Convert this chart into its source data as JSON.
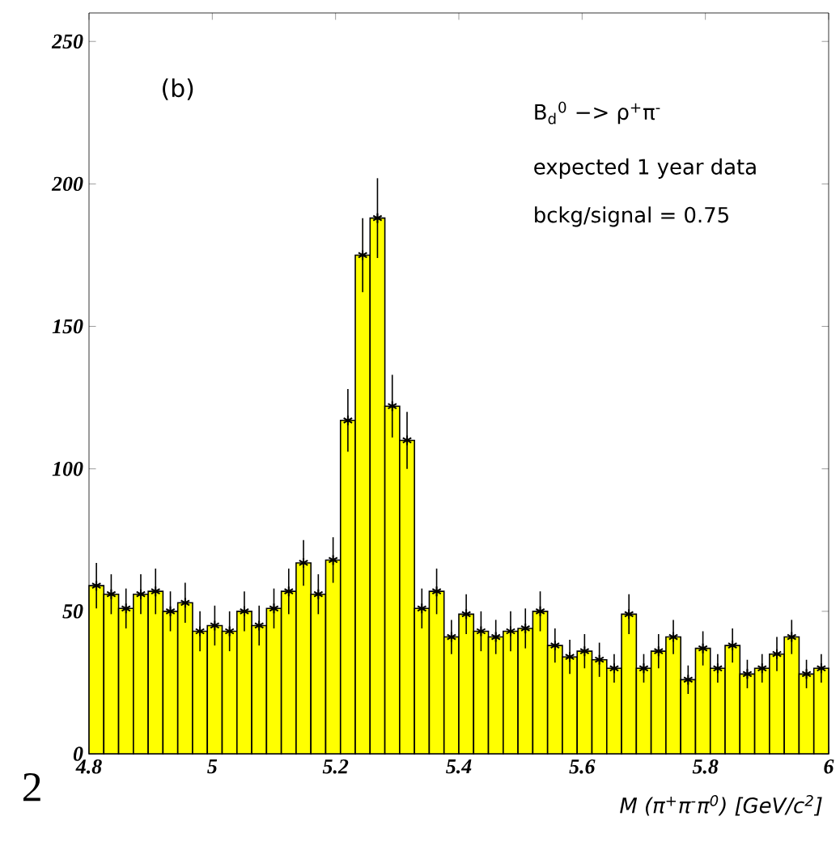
{
  "chart_data": {
    "type": "histogram",
    "xlabel": "M (π$^{+}$π$^{-}$π$^{0}$)   [GeV/c$^{2}$]",
    "annotations": [
      "(b)",
      "B$_{d}$$^{0}$ −> ρ$^{+}$π$^{-}$",
      "expected 1 year data",
      "bckg/signal = 0.75",
      "2"
    ],
    "bins": [
      4.8,
      4.824,
      4.848,
      4.872,
      4.896,
      4.92,
      4.944,
      4.968,
      4.992,
      5.016,
      5.04,
      5.064,
      5.088,
      5.112,
      5.136,
      5.16,
      5.184,
      5.208,
      5.232,
      5.256,
      5.28,
      5.304,
      5.328,
      5.352,
      5.376,
      5.4,
      5.424,
      5.448,
      5.472,
      5.496,
      5.52,
      5.544,
      5.568,
      5.592,
      5.616,
      5.64,
      5.664,
      5.688,
      5.712,
      5.736,
      5.76,
      5.784,
      5.808,
      5.832,
      5.856,
      5.88,
      5.904,
      5.928,
      5.952,
      5.976,
      6.0
    ],
    "values": [
      59,
      56,
      51,
      56,
      57,
      50,
      53,
      43,
      45,
      43,
      50,
      45,
      51,
      57,
      67,
      56,
      68,
      117,
      175,
      188,
      122,
      110,
      51,
      57,
      41,
      49,
      43,
      41,
      43,
      44,
      50,
      38,
      34,
      36,
      33,
      30,
      49,
      30,
      36,
      41,
      26,
      37,
      30,
      38,
      28,
      30,
      35,
      41,
      28,
      30
    ],
    "errors": [
      8,
      7,
      7,
      7,
      8,
      7,
      7,
      7,
      7,
      7,
      7,
      7,
      7,
      8,
      8,
      7,
      8,
      11,
      13,
      14,
      11,
      10,
      7,
      8,
      6,
      7,
      7,
      6,
      7,
      7,
      7,
      6,
      6,
      6,
      6,
      5,
      7,
      5,
      6,
      6,
      5,
      6,
      5,
      6,
      5,
      5,
      6,
      6,
      5,
      5
    ],
    "color": "#ffff00",
    "marker": "star",
    "xlim": [
      4.8,
      6
    ],
    "ylim": [
      0,
      260
    ],
    "xticks": [
      4.8,
      5,
      5.2,
      5.4,
      5.6,
      5.8,
      6
    ],
    "yticks": [
      0,
      50,
      100,
      150,
      200,
      250
    ]
  }
}
